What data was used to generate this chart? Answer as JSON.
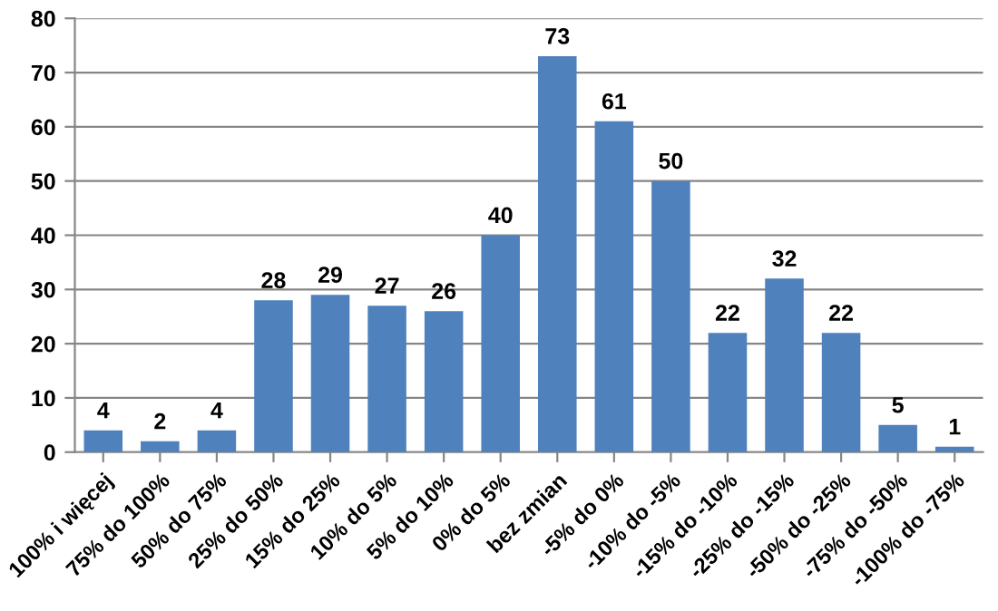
{
  "chart_data": {
    "type": "bar",
    "categories": [
      "100% i więcej",
      "75% do 100%",
      "50% do 75%",
      "25% do 50%",
      "15% do 25%",
      "10% do 5%",
      "5% do 10%",
      "0% do 5%",
      "bez zmian",
      "-5% do 0%",
      "-10% do -5%",
      "-15% do -10%",
      "-25% do -15%",
      "-50% do -25%",
      "-75% do -50%",
      "-100% do -75%"
    ],
    "values": [
      4,
      2,
      4,
      28,
      29,
      27,
      26,
      40,
      73,
      61,
      50,
      22,
      32,
      22,
      5,
      1
    ],
    "color": "#4f81bd",
    "ylim": [
      0,
      80
    ],
    "yticks": [
      0,
      10,
      20,
      30,
      40,
      50,
      60,
      70,
      80
    ],
    "grid": "y",
    "data_labels": true
  }
}
